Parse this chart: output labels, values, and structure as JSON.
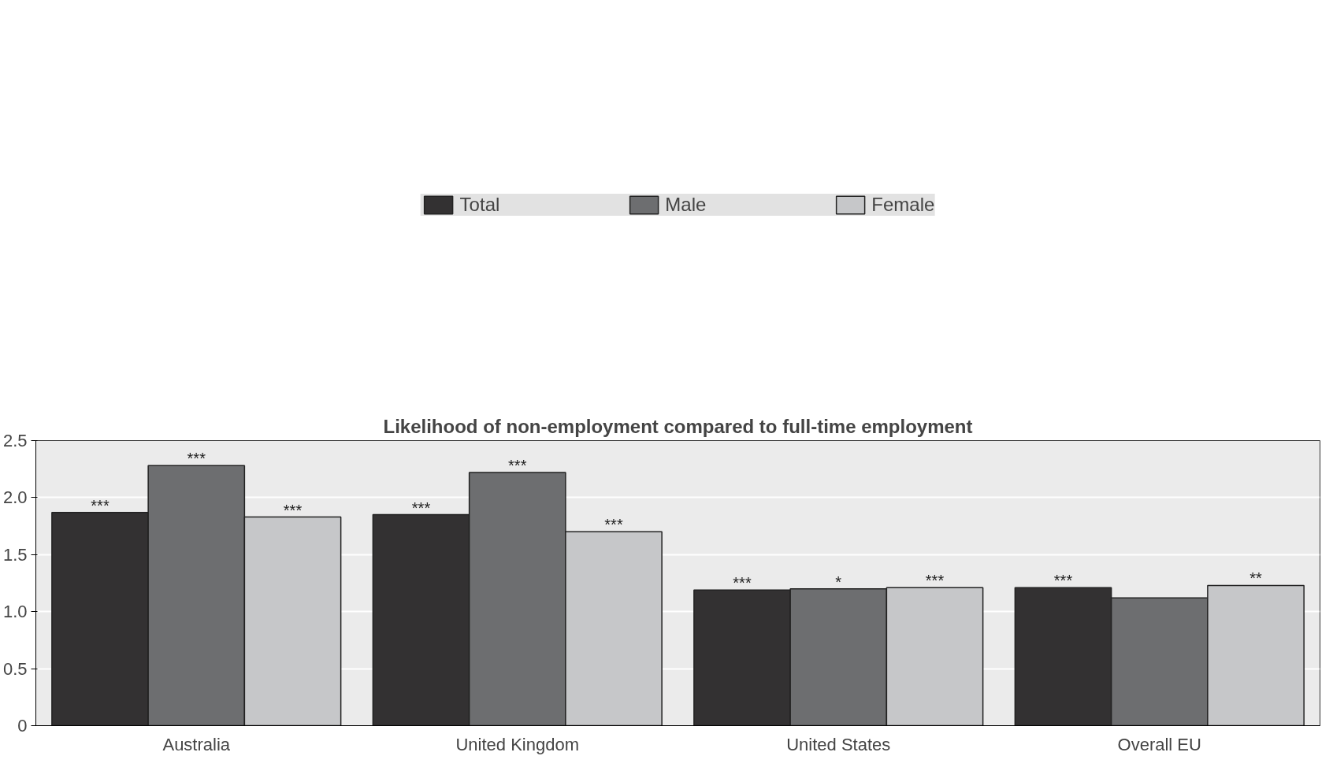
{
  "chart_data": {
    "type": "bar",
    "title": "Likelihood of non-employment compared to full-time employment",
    "categories": [
      "Australia",
      "United Kingdom",
      "United States",
      "Overall EU"
    ],
    "series": [
      {
        "name": "Total",
        "color": "#333132",
        "values": [
          1.87,
          1.85,
          1.19,
          1.21
        ],
        "value_labels": [
          "***",
          "***",
          "***",
          "***"
        ]
      },
      {
        "name": "Male",
        "color": "#6d6e70",
        "values": [
          2.28,
          2.22,
          1.2,
          1.12
        ],
        "value_labels": [
          "***",
          "***",
          "*",
          null
        ]
      },
      {
        "name": "Female",
        "color": "#c6c7c9",
        "values": [
          1.83,
          1.7,
          1.21,
          1.23
        ],
        "value_labels": [
          "***",
          "***",
          "***",
          "**"
        ]
      }
    ],
    "ylim": [
      0,
      2.5
    ],
    "yticks": [
      0,
      {
        "value": 0.5,
        "label": "0.5"
      },
      {
        "value": 1,
        "label": "1.0"
      },
      {
        "value": 1.5,
        "label": "1.5"
      },
      {
        "value": 2,
        "label": "2.0"
      },
      {
        "value": 2.5,
        "label": "2.5"
      }
    ],
    "grid": "y",
    "legend": "top"
  }
}
